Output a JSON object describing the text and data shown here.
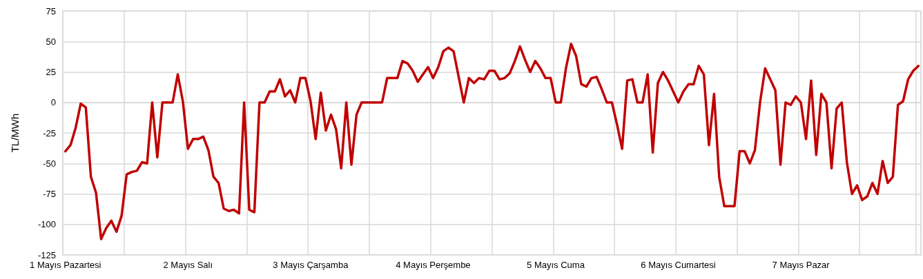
{
  "chart_data": {
    "type": "line",
    "ylabel": "TL/MWh",
    "categories": [
      "1 Mayıs Pazartesi",
      null,
      null,
      null,
      null,
      null,
      null,
      null,
      null,
      null,
      null,
      null,
      null,
      null,
      null,
      null,
      null,
      null,
      null,
      null,
      null,
      null,
      null,
      null,
      "2 Mayıs Salı",
      null,
      null,
      null,
      null,
      null,
      null,
      null,
      null,
      null,
      null,
      null,
      null,
      null,
      null,
      null,
      null,
      null,
      null,
      null,
      null,
      null,
      null,
      null,
      "3 Mayıs Çarşamba",
      null,
      null,
      null,
      null,
      null,
      null,
      null,
      null,
      null,
      null,
      null,
      null,
      null,
      null,
      null,
      null,
      null,
      null,
      null,
      null,
      null,
      null,
      null,
      "4 Mayıs Perşembe",
      null,
      null,
      null,
      null,
      null,
      null,
      null,
      null,
      null,
      null,
      null,
      null,
      null,
      null,
      null,
      null,
      null,
      null,
      null,
      null,
      null,
      null,
      null,
      "5 Mayıs Cuma",
      null,
      null,
      null,
      null,
      null,
      null,
      null,
      null,
      null,
      null,
      null,
      null,
      null,
      null,
      null,
      null,
      null,
      null,
      null,
      null,
      null,
      null,
      null,
      "6 Mayıs Cumartesi",
      null,
      null,
      null,
      null,
      null,
      null,
      null,
      null,
      null,
      null,
      null,
      null,
      null,
      null,
      null,
      null,
      null,
      null,
      null,
      null,
      null,
      null,
      null,
      "7 Mayıs Pazar",
      null,
      null,
      null,
      null,
      null,
      null,
      null,
      null,
      null,
      null,
      null,
      null,
      null,
      null,
      null,
      null,
      null,
      null,
      null,
      null,
      null,
      null,
      null
    ],
    "series": [
      {
        "color": "#c00000",
        "values": [
          -40,
          -35,
          -21,
          -1,
          -4,
          -61,
          -74,
          -112,
          -103,
          -97,
          -106,
          -93,
          -59,
          -57,
          -56,
          -49,
          -50,
          0,
          -45,
          0,
          0,
          0,
          23,
          1,
          -38,
          -30,
          -30,
          -28,
          -39,
          -61,
          -66,
          -87,
          -89,
          -88,
          -91,
          0,
          -88,
          -90,
          0,
          0,
          9,
          9,
          19,
          5,
          10,
          0,
          20,
          20,
          1,
          -30,
          8,
          -23,
          -10,
          -22,
          -54,
          0,
          -51,
          -10,
          0,
          0,
          0,
          0,
          0,
          20,
          20,
          20,
          34,
          32,
          26,
          17,
          23,
          29,
          20,
          29,
          42,
          45,
          42,
          21,
          0,
          20,
          16,
          20,
          19,
          26,
          26,
          19,
          20,
          24,
          34,
          46,
          35,
          25,
          34,
          28,
          20,
          20,
          0,
          0,
          28,
          48,
          38,
          15,
          13,
          20,
          21,
          11,
          0,
          0,
          -18,
          -38,
          18,
          19,
          0,
          0,
          23,
          -41,
          16,
          25,
          18,
          9,
          0,
          9,
          15,
          15,
          30,
          23,
          -35,
          7,
          -61,
          -85,
          -85,
          -85,
          -40,
          -40,
          -50,
          -39,
          0,
          28,
          19,
          10,
          -51,
          0,
          -2,
          5,
          0,
          -30,
          18,
          -43,
          7,
          0,
          -54,
          -5,
          0,
          -49,
          -75,
          -68,
          -80,
          -77,
          -66,
          -75,
          -48,
          -66,
          -61,
          -2,
          1,
          19,
          26,
          30
        ]
      }
    ],
    "ylim": [
      -125,
      75
    ],
    "yticks": [
      -125,
      -100,
      -75,
      -50,
      -25,
      0,
      25,
      50,
      75
    ],
    "grid": true,
    "marker": "none",
    "line_style": "solid"
  }
}
